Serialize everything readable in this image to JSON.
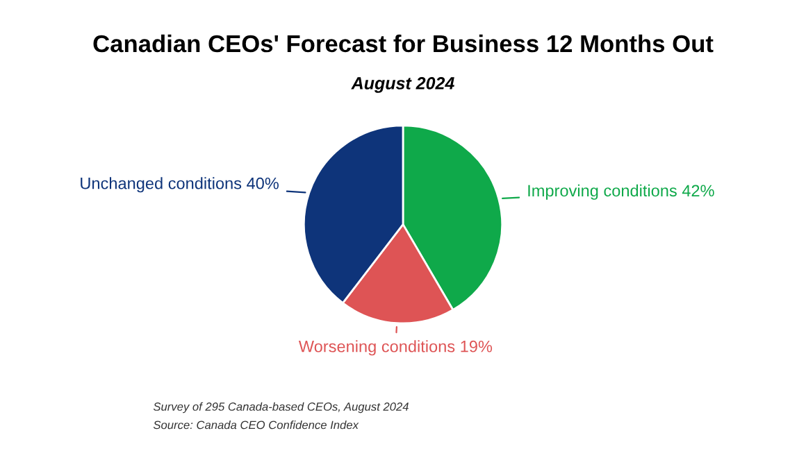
{
  "chart_data": {
    "type": "pie",
    "title": "Canadian CEOs' Forecast for Business 12 Months Out",
    "subtitle": "August 2024",
    "categories": [
      "Improving conditions",
      "Worsening conditions",
      "Unchanged conditions"
    ],
    "values": [
      42,
      19,
      40
    ],
    "colors": [
      "#0fa94a",
      "#de5455",
      "#0e347a"
    ],
    "value_labels": [
      "42%",
      "19%",
      "40%"
    ],
    "annotations": [
      "Survey of 295 Canada-based CEOs, August 2024",
      "Source: Canada CEO Confidence Index"
    ]
  }
}
